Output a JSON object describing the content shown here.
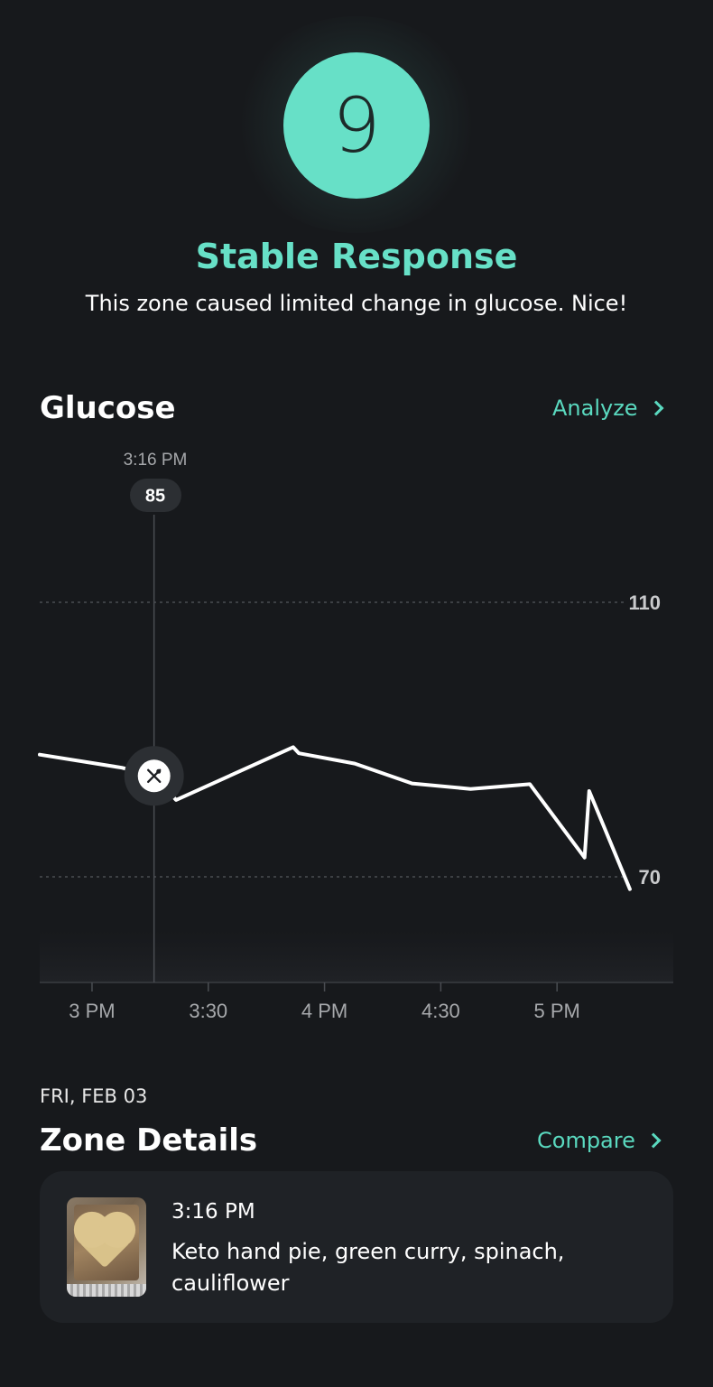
{
  "score": {
    "value": "9",
    "title": "Stable Response",
    "description": "This zone caused limited change in glucose. Nice!",
    "color": "#67e0c7"
  },
  "glucose": {
    "title": "Glucose",
    "analyze_label": "Analyze",
    "marker": {
      "time": "3:16 PM",
      "value": "85",
      "icon": "fork-knife-icon"
    },
    "x_ticks": [
      "3 PM",
      "3:30",
      "4 PM",
      "4:30",
      "5 PM"
    ],
    "y_ticks": [
      "110",
      "70"
    ]
  },
  "chart_data": {
    "type": "line",
    "title": "Glucose",
    "xlabel": "",
    "ylabel": "",
    "x_unit": "minutes",
    "x_tick_labels": [
      "3 PM",
      "3:30",
      "4 PM",
      "4:30",
      "5 PM"
    ],
    "x_tick_values": [
      0,
      30,
      60,
      90,
      120
    ],
    "xlim": [
      -13.5,
      150
    ],
    "ylim": [
      55,
      125
    ],
    "y_ticks": [
      110,
      70
    ],
    "grid": "dashed at 110 and 70",
    "accent_color": "#ffffff",
    "series": [
      {
        "x": [
          -13.5,
          7.7,
          16,
          21.7,
          51.9,
          53.4,
          67.8,
          82.6,
          97.7,
          113,
          127.1,
          128.3,
          138.8
        ],
        "y": [
          87.8,
          85.9,
          84.7,
          81.2,
          88.9,
          88.0,
          86.5,
          83.6,
          82.8,
          83.5,
          72.8,
          82.5,
          68.2
        ]
      }
    ],
    "marker_point": {
      "x": 16,
      "y": 84.7
    }
  },
  "zone": {
    "date": "FRI, FEB 03",
    "title": "Zone Details",
    "compare_label": "Compare",
    "entry": {
      "time": "3:16 PM",
      "foods": "Keto hand pie, green curry, spinach, cauliflower",
      "thumbnail": "meal-photo"
    }
  }
}
